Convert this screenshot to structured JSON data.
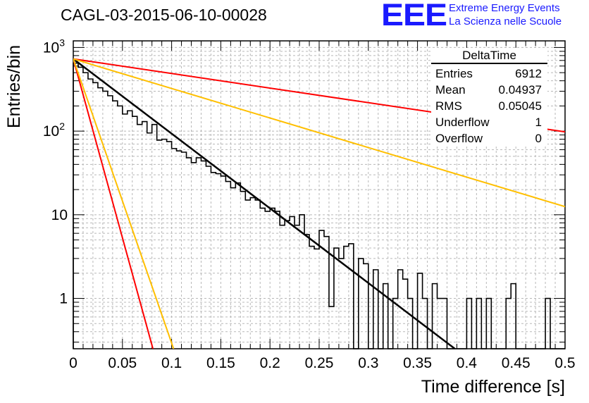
{
  "header": {
    "title": "CAGL-03-2015-06-10-00028"
  },
  "logo": {
    "mark": "EEE",
    "line1": "Extreme Energy Events",
    "line2": "La Scienza nelle Scuole",
    "color": "#1a1aff"
  },
  "stats_box": {
    "title": "DeltaTime",
    "rows": [
      {
        "label": "Entries",
        "value": "6912"
      },
      {
        "label": "Mean",
        "value": "0.04937"
      },
      {
        "label": "RMS",
        "value": "0.05045"
      },
      {
        "label": "Underflow",
        "value": "1"
      },
      {
        "label": "Overflow",
        "value": "0"
      }
    ]
  },
  "chart_data": {
    "type": "histogram",
    "title": "CAGL-03-2015-06-10-00028",
    "xlabel": "Time difference [s]",
    "ylabel": "Entries/bin",
    "xlim": [
      0,
      0.5
    ],
    "ylim": [
      0.25,
      1200
    ],
    "yscale": "log",
    "grid": true,
    "x_ticks": [
      "0",
      "0.05",
      "0.1",
      "0.15",
      "0.2",
      "0.25",
      "0.3",
      "0.35",
      "0.4",
      "0.45",
      "0.5"
    ],
    "y_ticks": [
      "1",
      "10",
      "10^2",
      "10^3"
    ],
    "bin_width": 0.005,
    "histogram": {
      "color": "#000000",
      "values": [
        650,
        580,
        500,
        420,
        380,
        330,
        300,
        265,
        230,
        200,
        160,
        175,
        150,
        120,
        130,
        95,
        120,
        78,
        80,
        75,
        62,
        58,
        56,
        48,
        42,
        48,
        44,
        38,
        32,
        31,
        29,
        25,
        21,
        24,
        19,
        15,
        16,
        15,
        12,
        11,
        12,
        11,
        7.5,
        8.5,
        9.5,
        7.5,
        10,
        5.8,
        4.2,
        3.9,
        6.5,
        5.5,
        0.8,
        4,
        3,
        4.2,
        4.5,
        0.2,
        3,
        2.6,
        0.2,
        2.2,
        0.2,
        1.5,
        0.2,
        1,
        2.2,
        1.7,
        1,
        0.2,
        2,
        1,
        0.2,
        1.5,
        1,
        1,
        0.2,
        0.2,
        0.2,
        0.2,
        1,
        0.2,
        1,
        0.2,
        1,
        0.2,
        0.2,
        0.2,
        1,
        1.5,
        0.2,
        0.2,
        0.2,
        0.2,
        0.2,
        0.2,
        1,
        0.2,
        0.2,
        0.2
      ]
    },
    "series": [
      {
        "color": "#000000",
        "width": 2.5,
        "x": [
          0,
          0.388
        ],
        "y": [
          730,
          0.25
        ]
      },
      {
        "color": "#ff0000",
        "width": 2,
        "x": [
          0,
          0.5
        ],
        "y": [
          730,
          98
        ]
      },
      {
        "color": "#ffbf00",
        "width": 2,
        "x": [
          0,
          0.5
        ],
        "y": [
          730,
          12.5
        ]
      },
      {
        "color": "#ff0000",
        "width": 2,
        "x": [
          0,
          0.081
        ],
        "y": [
          730,
          0.25
        ]
      },
      {
        "color": "#ffbf00",
        "width": 2,
        "x": [
          0,
          0.102
        ],
        "y": [
          730,
          0.25
        ]
      }
    ]
  }
}
